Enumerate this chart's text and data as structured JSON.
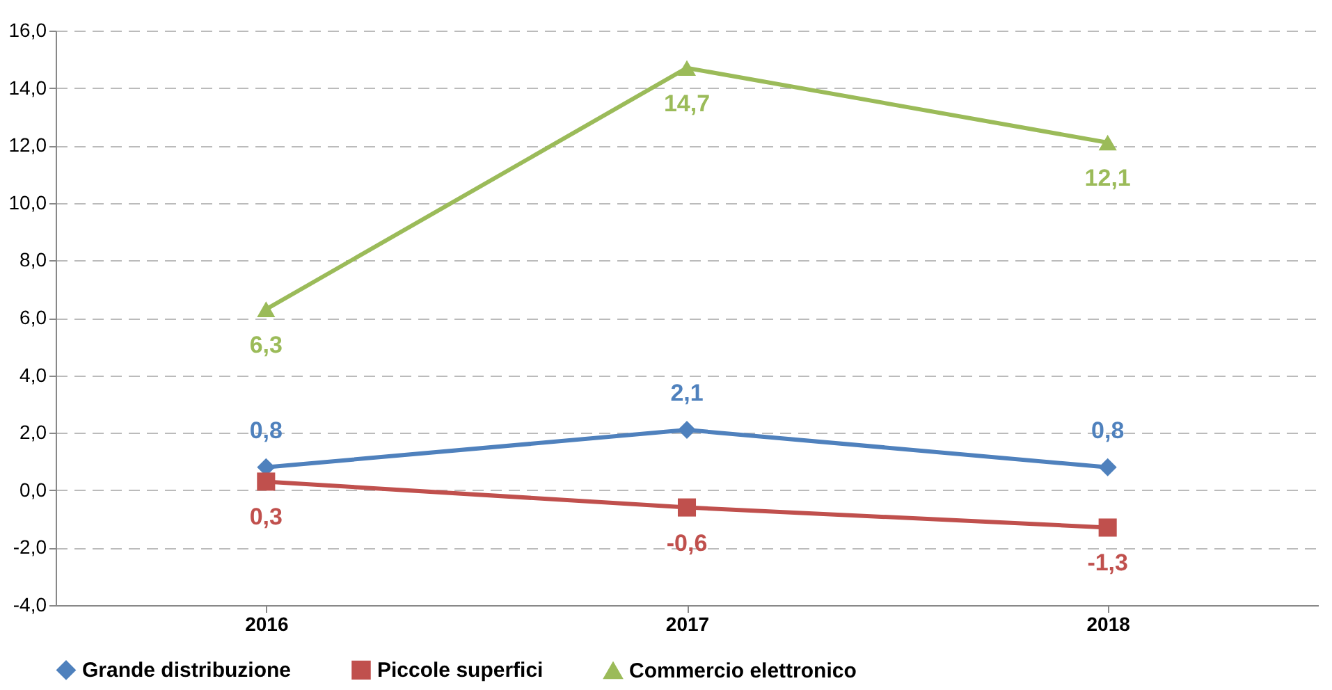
{
  "chart_data": {
    "type": "line",
    "categories": [
      "2016",
      "2017",
      "2018"
    ],
    "series": [
      {
        "name": "Grande distribuzione",
        "color": "#4f81bd",
        "marker": "diamond",
        "values": [
          0.8,
          2.1,
          0.8
        ],
        "value_labels": [
          "0,8",
          "2,1",
          "0,8"
        ]
      },
      {
        "name": "Piccole superfici",
        "color": "#c0504d",
        "marker": "square",
        "values": [
          0.3,
          -0.6,
          -1.3
        ],
        "value_labels": [
          "0,3",
          "-0,6",
          "-1,3"
        ]
      },
      {
        "name": "Commercio elettronico",
        "color": "#9bbb59",
        "marker": "triangle",
        "values": [
          6.3,
          14.7,
          12.1
        ],
        "value_labels": [
          "6,3",
          "14,7",
          "12,1"
        ]
      }
    ],
    "ylim": [
      -4,
      16
    ],
    "yticks": [
      {
        "value": -4,
        "label": "-4,0"
      },
      {
        "value": -2,
        "label": "-2,0"
      },
      {
        "value": 0,
        "label": "0,0"
      },
      {
        "value": 2,
        "label": "2,0"
      },
      {
        "value": 4,
        "label": "4,0"
      },
      {
        "value": 6,
        "label": "6,0"
      },
      {
        "value": 8,
        "label": "8,0"
      },
      {
        "value": 10,
        "label": "10,0"
      },
      {
        "value": 12,
        "label": "12,0"
      },
      {
        "value": 14,
        "label": "14,0"
      },
      {
        "value": 16,
        "label": "16,0"
      }
    ],
    "grid": "y",
    "legend": "bottom",
    "line_style": "solid"
  }
}
